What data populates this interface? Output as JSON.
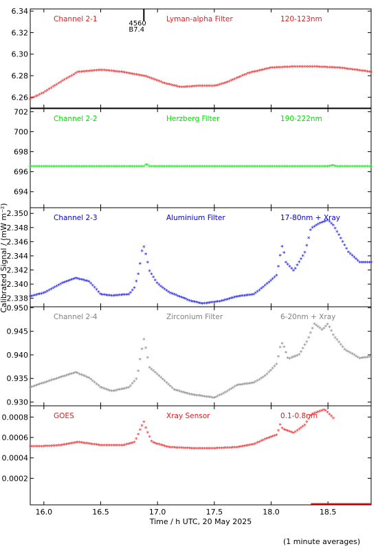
{
  "chart_data": {
    "type": "scatter",
    "x_axis": {
      "label": "Time / h UTC, 20 May 2025",
      "range": [
        15.88,
        18.88
      ],
      "ticks": [
        16.0,
        16.5,
        17.0,
        17.5,
        18.0,
        18.5
      ],
      "tick_labels": [
        "16.0",
        "16.5",
        "17.0",
        "17.5",
        "18.0",
        "18.5"
      ]
    },
    "y_axis_label": "Calibrated Signal / (mW m⁻²)",
    "footnote": "(1 minute averages)",
    "annotation": {
      "x": 16.88,
      "panel": 0,
      "line1": "4560",
      "line2": "B7.4"
    },
    "panels": [
      {
        "name": "Channel 2-1",
        "filter": "Lyman-alpha Filter",
        "band": "120-123nm",
        "color": "#e41a1c",
        "ylim": [
          6.25,
          6.342
        ],
        "yticks": [
          6.26,
          6.28,
          6.3,
          6.32,
          6.34
        ],
        "ytick_labels": [
          "6.26",
          "6.28",
          "6.30",
          "6.32",
          "6.34"
        ],
        "points": [
          [
            15.88,
            6.258
          ],
          [
            16.0,
            6.264
          ],
          [
            16.15,
            6.274
          ],
          [
            16.3,
            6.283
          ],
          [
            16.5,
            6.285
          ],
          [
            16.7,
            6.283
          ],
          [
            16.9,
            6.279
          ],
          [
            17.05,
            6.273
          ],
          [
            17.2,
            6.269
          ],
          [
            17.35,
            6.27
          ],
          [
            17.5,
            6.27
          ],
          [
            17.6,
            6.273
          ],
          [
            17.8,
            6.282
          ],
          [
            18.0,
            6.287
          ],
          [
            18.2,
            6.288
          ],
          [
            18.4,
            6.288
          ],
          [
            18.6,
            6.287
          ],
          [
            18.75,
            6.285
          ],
          [
            18.88,
            6.283
          ]
        ]
      },
      {
        "name": "Channel 2-2",
        "filter": "Herzberg Filter",
        "band": "190-222nm",
        "color": "#00e000",
        "ylim": [
          692.4,
          702.3
        ],
        "yticks": [
          694,
          696,
          698,
          700,
          702
        ],
        "ytick_labels": [
          "694",
          "696",
          "698",
          "700",
          "702"
        ],
        "points": [
          [
            15.88,
            696.5
          ],
          [
            16.5,
            696.5
          ],
          [
            16.88,
            696.5
          ],
          [
            16.9,
            696.7
          ],
          [
            16.93,
            696.5
          ],
          [
            17.5,
            696.5
          ],
          [
            18.0,
            696.5
          ],
          [
            18.5,
            696.5
          ],
          [
            18.54,
            696.6
          ],
          [
            18.57,
            696.5
          ],
          [
            18.88,
            696.5
          ]
        ]
      },
      {
        "name": "Channel 2-3",
        "filter": "Aluminium Filter",
        "band": "17-80nm + Xray",
        "color": "#0000e0",
        "ylim": [
          2.3368,
          2.3508
        ],
        "yticks": [
          2.338,
          2.34,
          2.342,
          2.344,
          2.346,
          2.348,
          2.35
        ],
        "ytick_labels": [
          "2.338",
          "2.340",
          "2.342",
          "2.344",
          "2.346",
          "2.348",
          "2.350"
        ],
        "points": [
          [
            15.88,
            2.3382
          ],
          [
            16.0,
            2.3387
          ],
          [
            16.15,
            2.34
          ],
          [
            16.28,
            2.3408
          ],
          [
            16.4,
            2.3403
          ],
          [
            16.5,
            2.3385
          ],
          [
            16.6,
            2.3383
          ],
          [
            16.75,
            2.3385
          ],
          [
            16.8,
            2.3395
          ],
          [
            16.84,
            2.342
          ],
          [
            16.86,
            2.3445
          ],
          [
            16.88,
            2.3452
          ],
          [
            16.9,
            2.344
          ],
          [
            16.93,
            2.3418
          ],
          [
            17.0,
            2.34
          ],
          [
            17.1,
            2.3388
          ],
          [
            17.3,
            2.3375
          ],
          [
            17.4,
            2.3372
          ],
          [
            17.55,
            2.3375
          ],
          [
            17.7,
            2.3382
          ],
          [
            17.85,
            2.3385
          ],
          [
            17.95,
            2.3398
          ],
          [
            18.05,
            2.3412
          ],
          [
            18.08,
            2.344
          ],
          [
            18.1,
            2.3455
          ],
          [
            18.13,
            2.343
          ],
          [
            18.2,
            2.3418
          ],
          [
            18.3,
            2.3445
          ],
          [
            18.35,
            2.3478
          ],
          [
            18.42,
            2.3485
          ],
          [
            18.5,
            2.349
          ],
          [
            18.55,
            2.3482
          ],
          [
            18.6,
            2.3468
          ],
          [
            18.68,
            2.3445
          ],
          [
            18.78,
            2.343
          ],
          [
            18.88,
            2.343
          ]
        ]
      },
      {
        "name": "Channel 2-4",
        "filter": "Zirconium Filter",
        "band": "6-20nm + Xray",
        "color": "#808080",
        "ylim": [
          0.9292,
          0.9502
        ],
        "yticks": [
          0.93,
          0.935,
          0.94,
          0.945,
          0.95
        ],
        "ytick_labels": [
          "0.930",
          "0.935",
          "0.940",
          "0.945",
          "0.950"
        ],
        "points": [
          [
            15.88,
            0.933
          ],
          [
            16.0,
            0.934
          ],
          [
            16.1,
            0.9348
          ],
          [
            16.28,
            0.9362
          ],
          [
            16.4,
            0.935
          ],
          [
            16.5,
            0.933
          ],
          [
            16.6,
            0.9322
          ],
          [
            16.75,
            0.933
          ],
          [
            16.82,
            0.935
          ],
          [
            16.85,
            0.9395
          ],
          [
            16.88,
            0.9432
          ],
          [
            16.9,
            0.941
          ],
          [
            16.93,
            0.9372
          ],
          [
            17.0,
            0.9358
          ],
          [
            17.15,
            0.9325
          ],
          [
            17.3,
            0.9315
          ],
          [
            17.5,
            0.9308
          ],
          [
            17.6,
            0.932
          ],
          [
            17.7,
            0.9335
          ],
          [
            17.85,
            0.934
          ],
          [
            17.95,
            0.9355
          ],
          [
            18.05,
            0.938
          ],
          [
            18.08,
            0.9415
          ],
          [
            18.1,
            0.9425
          ],
          [
            18.15,
            0.939
          ],
          [
            18.25,
            0.94
          ],
          [
            18.32,
            0.943
          ],
          [
            18.38,
            0.9465
          ],
          [
            18.45,
            0.9452
          ],
          [
            18.5,
            0.9465
          ],
          [
            18.55,
            0.944
          ],
          [
            18.65,
            0.941
          ],
          [
            18.78,
            0.9392
          ],
          [
            18.88,
            0.9395
          ]
        ]
      },
      {
        "name": "GOES",
        "filter": "Xray Sensor",
        "band": "0.1-0.8nm",
        "color": "#e41a1c",
        "ylim": [
          -6e-05,
          0.00091
        ],
        "yticks": [
          0.0002,
          0.0004,
          0.0006,
          0.0008
        ],
        "ytick_labels": [
          "0.0002",
          "0.0004",
          "0.0006",
          "0.0008"
        ],
        "points": [
          [
            15.88,
            0.00051
          ],
          [
            16.0,
            0.00051
          ],
          [
            16.15,
            0.00052
          ],
          [
            16.3,
            0.00055
          ],
          [
            16.5,
            0.00052
          ],
          [
            16.7,
            0.00052
          ],
          [
            16.8,
            0.00055
          ],
          [
            16.85,
            0.00068
          ],
          [
            16.88,
            0.00075
          ],
          [
            16.9,
            0.00068
          ],
          [
            16.95,
            0.00055
          ],
          [
            17.1,
            0.0005
          ],
          [
            17.3,
            0.00049
          ],
          [
            17.5,
            0.00049
          ],
          [
            17.7,
            0.0005
          ],
          [
            17.85,
            0.00053
          ],
          [
            17.95,
            0.00058
          ],
          [
            18.05,
            0.00062
          ],
          [
            18.08,
            0.00072
          ],
          [
            18.1,
            0.00068
          ],
          [
            18.2,
            0.00064
          ],
          [
            18.3,
            0.00072
          ],
          [
            18.35,
            0.00082
          ],
          [
            18.42,
            0.00085
          ],
          [
            18.47,
            0.00087
          ],
          [
            18.5,
            0.00084
          ],
          [
            18.55,
            0.00078
          ]
        ]
      }
    ]
  }
}
